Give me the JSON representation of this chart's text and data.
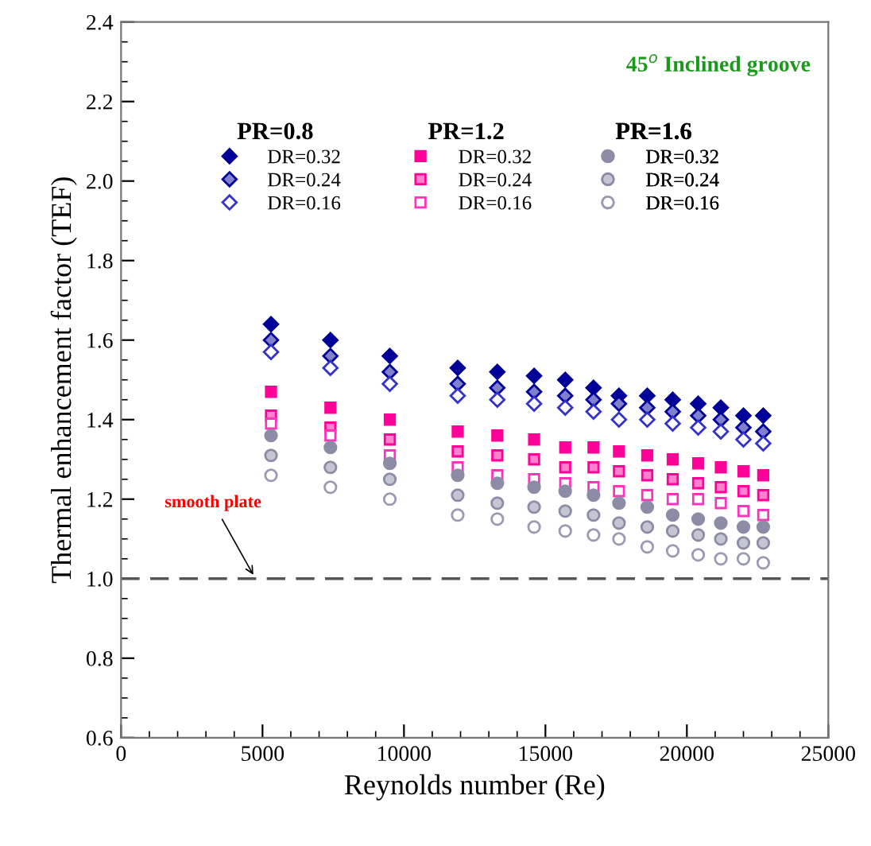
{
  "chart_data": {
    "type": "scatter",
    "title": "45$^{o}$ Inclined groove",
    "xlabel": "Reynolds number (Re)",
    "ylabel": "Thermal enhancement factor (TEF)",
    "x": [
      5300,
      7400,
      9500,
      11900,
      13300,
      14600,
      15700,
      16700,
      17600,
      18600,
      19500,
      20400,
      21200,
      22000,
      22700
    ],
    "series": [
      {
        "name": "DR=0.32",
        "color": "#000099",
        "marker": "diamond",
        "values": [
          1.64,
          1.6,
          1.56,
          1.53,
          1.52,
          1.51,
          1.5,
          1.48,
          1.46,
          1.46,
          1.45,
          1.44,
          1.43,
          1.41,
          1.41
        ]
      },
      {
        "name": "DR=0.24",
        "color": "#000099",
        "marker": "diamond",
        "values": [
          1.6,
          1.56,
          1.52,
          1.49,
          1.48,
          1.47,
          1.46,
          1.45,
          1.44,
          1.43,
          1.42,
          1.41,
          1.4,
          1.38,
          1.37
        ]
      },
      {
        "name": "DR=0.16",
        "color": "#3333cc",
        "marker": "diamond",
        "values": [
          1.57,
          1.53,
          1.49,
          1.46,
          1.45,
          1.44,
          1.43,
          1.42,
          1.4,
          1.4,
          1.39,
          1.38,
          1.37,
          1.35,
          1.34
        ]
      },
      {
        "name": "DR=0.32",
        "color": "#ff0099",
        "marker": "square",
        "values": [
          1.47,
          1.43,
          1.4,
          1.37,
          1.36,
          1.35,
          1.33,
          1.33,
          1.32,
          1.31,
          1.3,
          1.29,
          1.28,
          1.27,
          1.26
        ]
      },
      {
        "name": "DR=0.24",
        "color": "#ff0099",
        "marker": "square",
        "values": [
          1.41,
          1.38,
          1.35,
          1.32,
          1.31,
          1.3,
          1.28,
          1.28,
          1.27,
          1.26,
          1.25,
          1.24,
          1.23,
          1.22,
          1.21
        ]
      },
      {
        "name": "DR=0.16",
        "color": "#ff33bb",
        "marker": "square",
        "values": [
          1.39,
          1.36,
          1.31,
          1.28,
          1.26,
          1.25,
          1.24,
          1.23,
          1.22,
          1.21,
          1.2,
          1.2,
          1.19,
          1.17,
          1.16
        ]
      },
      {
        "name": "DR=0.32",
        "color": "#8c8ca6",
        "marker": "circle",
        "values": [
          1.36,
          1.33,
          1.29,
          1.26,
          1.24,
          1.23,
          1.22,
          1.21,
          1.19,
          1.18,
          1.16,
          1.15,
          1.14,
          1.13,
          1.13
        ]
      },
      {
        "name": "DR=0.24",
        "color": "#8c8ca6",
        "marker": "circle",
        "values": [
          1.31,
          1.28,
          1.25,
          1.21,
          1.19,
          1.18,
          1.17,
          1.16,
          1.14,
          1.13,
          1.12,
          1.11,
          1.1,
          1.09,
          1.09
        ]
      },
      {
        "name": "DR=0.16",
        "color": "#9a9ab4",
        "marker": "circle",
        "values": [
          1.26,
          1.23,
          1.2,
          1.16,
          1.15,
          1.13,
          1.12,
          1.11,
          1.1,
          1.08,
          1.07,
          1.06,
          1.05,
          1.05,
          1.04
        ]
      }
    ],
    "annotations": [
      "PR=0.8",
      "PR=1.2",
      "PR=1.6"
    ],
    "ref_lines": [
      {
        "axis": "y",
        "value": 1.0,
        "label": "smooth plate",
        "color": "#555555",
        "line_style": "dashed"
      }
    ],
    "xlim": [
      0,
      25000
    ],
    "xticks": [
      0,
      5000,
      10000,
      15000,
      20000,
      25000
    ],
    "ylim": [
      0.6,
      2.4
    ],
    "yticks": [
      0.6,
      0.8,
      {
        "value": 1,
        "label": "1.0"
      },
      1.2,
      1.4,
      1.6,
      1.8,
      {
        "value": 2,
        "label": "2.0"
      },
      2.2,
      2.4
    ],
    "grid": false,
    "legend": "top"
  }
}
